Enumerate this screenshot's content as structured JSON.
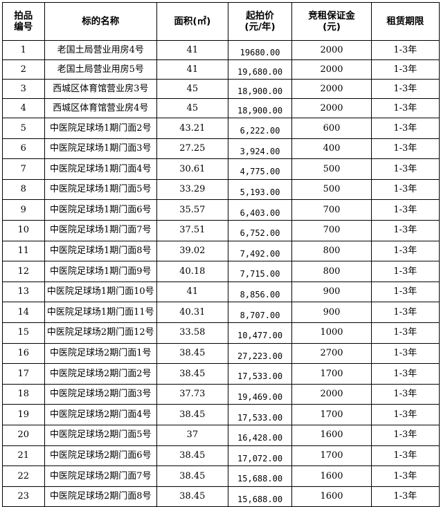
{
  "headers": {
    "lot_no": [
      "拍品",
      "编号"
    ],
    "name": "标的名称",
    "area": "面积(㎡)",
    "price": [
      "起拍价",
      "(元/年)"
    ],
    "deposit": [
      "竞租保证金",
      "(元)"
    ],
    "term": "租赁期限"
  },
  "rows": [
    [
      "1",
      "老国土局营业用房4号",
      "41",
      "19680.00",
      "2000",
      "1-3年"
    ],
    [
      "2",
      "老国土局营业用房5号",
      "41",
      "19,680.00",
      "2000",
      "1-3年"
    ],
    [
      "3",
      "西城区体育馆营业房3号",
      "45",
      "18,900.00",
      "2000",
      "1-3年"
    ],
    [
      "4",
      "西城区体育馆营业房4号",
      "45",
      "18,900.00",
      "2000",
      "1-3年"
    ],
    [
      "5",
      "中医院足球场1期门面2号",
      "43.21",
      "6,222.00",
      "600",
      "1-3年"
    ],
    [
      "6",
      "中医院足球场1期门面3号",
      "27.25",
      "3,924.00",
      "400",
      "1-3年"
    ],
    [
      "7",
      "中医院足球场1期门面4号",
      "30.61",
      "4,775.00",
      "500",
      "1-3年"
    ],
    [
      "8",
      "中医院足球场1期门面5号",
      "33.29",
      "5,193.00",
      "500",
      "1-3年"
    ],
    [
      "9",
      "中医院足球场1期门面6号",
      "35.57",
      "6,403.00",
      "700",
      "1-3年"
    ],
    [
      "10",
      "中医院足球场1期门面7号",
      "37.51",
      "6,752.00",
      "700",
      "1-3年"
    ],
    [
      "11",
      "中医院足球场1期门面8号",
      "39.02",
      "7,492.00",
      "800",
      "1-3年"
    ],
    [
      "12",
      "中医院足球场1期门面9号",
      "40.18",
      "7,715.00",
      "800",
      "1-3年"
    ],
    [
      "13",
      "中医院足球场1期门面10号",
      "41",
      "8,856.00",
      "900",
      "1-3年"
    ],
    [
      "14",
      "中医院足球场1期门面11号",
      "40.31",
      "8,707.00",
      "900",
      "1-3年"
    ],
    [
      "15",
      "中医院足球场2期门面12号",
      "33.58",
      "10,477.00",
      "1000",
      "1-3年"
    ],
    [
      "16",
      "中医院足球场2期门面1号",
      "38.45",
      "27,223.00",
      "2700",
      "1-3年"
    ],
    [
      "17",
      "中医院足球场2期门面2号",
      "38.45",
      "17,533.00",
      "1700",
      "1-3年"
    ],
    [
      "18",
      "中医院足球场2期门面3号",
      "37.73",
      "19,469.00",
      "2000",
      "1-3年"
    ],
    [
      "19",
      "中医院足球场2期门面4号",
      "38.45",
      "17,533.00",
      "1700",
      "1-3年"
    ],
    [
      "20",
      "中医院足球场2期门面5号",
      "37",
      "16,428.00",
      "1600",
      "1-3年"
    ],
    [
      "21",
      "中医院足球场2期门面6号",
      "38.45",
      "17,072.00",
      "1700",
      "1-3年"
    ],
    [
      "22",
      "中医院足球场2期门面7号",
      "38.45",
      "15,688.00",
      "1600",
      "1-3年"
    ],
    [
      "23",
      "中医院足球场2期门面8号",
      "38.45",
      "15,688.00",
      "1600",
      "1-3年"
    ]
  ]
}
